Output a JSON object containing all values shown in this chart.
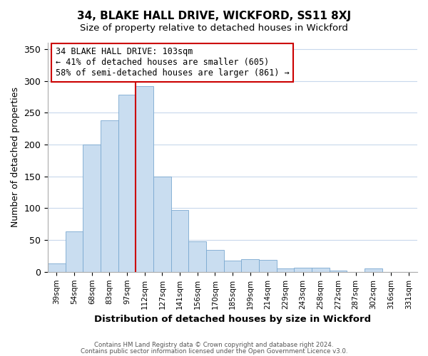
{
  "title": "34, BLAKE HALL DRIVE, WICKFORD, SS11 8XJ",
  "subtitle": "Size of property relative to detached houses in Wickford",
  "xlabel": "Distribution of detached houses by size in Wickford",
  "ylabel": "Number of detached properties",
  "bar_labels": [
    "39sqm",
    "54sqm",
    "68sqm",
    "83sqm",
    "97sqm",
    "112sqm",
    "127sqm",
    "141sqm",
    "156sqm",
    "170sqm",
    "185sqm",
    "199sqm",
    "214sqm",
    "229sqm",
    "243sqm",
    "258sqm",
    "272sqm",
    "287sqm",
    "302sqm",
    "316sqm",
    "331sqm"
  ],
  "bar_values": [
    13,
    64,
    200,
    238,
    278,
    292,
    150,
    97,
    48,
    35,
    18,
    20,
    19,
    5,
    7,
    7,
    2,
    0,
    5,
    0,
    0
  ],
  "bar_color": "#c9ddf0",
  "bar_edge_color": "#7aa8d0",
  "vline_index": 5,
  "vline_color": "#cc0000",
  "ylim": [
    0,
    360
  ],
  "yticks": [
    0,
    50,
    100,
    150,
    200,
    250,
    300,
    350
  ],
  "annotation_text": "34 BLAKE HALL DRIVE: 103sqm\n← 41% of detached houses are smaller (605)\n58% of semi-detached houses are larger (861) →",
  "annotation_fontsize": 8.5,
  "footer_line1": "Contains HM Land Registry data © Crown copyright and database right 2024.",
  "footer_line2": "Contains public sector information licensed under the Open Government Licence v3.0.",
  "background_color": "#ffffff",
  "grid_color": "#c8d8ec"
}
